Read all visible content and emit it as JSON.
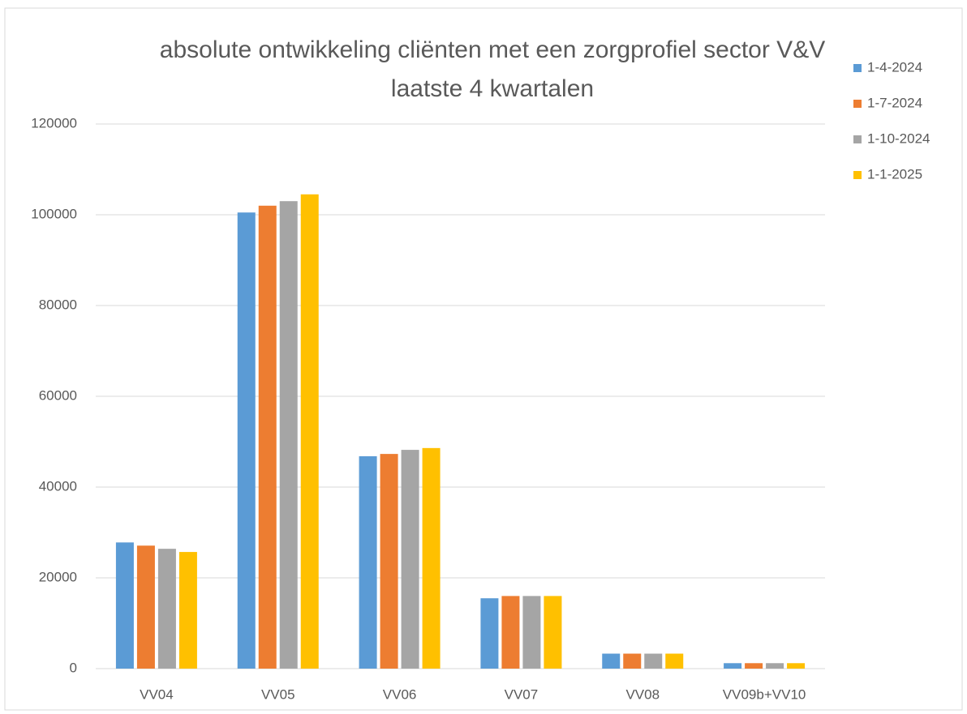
{
  "chart_data": {
    "type": "bar",
    "title": "absolute ontwikkeling cliënten met een zorgprofiel sector V&V laatste 4 kwartalen",
    "categories": [
      "VV04",
      "VV05",
      "VV06",
      "VV07",
      "VV08",
      "VV09b+VV10"
    ],
    "series": [
      {
        "name": "1-4-2024",
        "color": "#5b9bd5",
        "values": [
          27800,
          100500,
          46800,
          15500,
          3300,
          1200
        ]
      },
      {
        "name": "1-7-2024",
        "color": "#ed7d31",
        "values": [
          27100,
          102000,
          47300,
          16000,
          3300,
          1200
        ]
      },
      {
        "name": "1-10-2024",
        "color": "#a5a5a5",
        "values": [
          26400,
          103000,
          48200,
          16000,
          3300,
          1200
        ]
      },
      {
        "name": "1-1-2025",
        "color": "#ffc000",
        "values": [
          25700,
          104500,
          48600,
          16000,
          3300,
          1200
        ]
      }
    ],
    "ylim": [
      0,
      120000
    ],
    "yticks": [
      0,
      20000,
      40000,
      60000,
      80000,
      100000,
      120000
    ],
    "grid": true,
    "legend": "right"
  }
}
